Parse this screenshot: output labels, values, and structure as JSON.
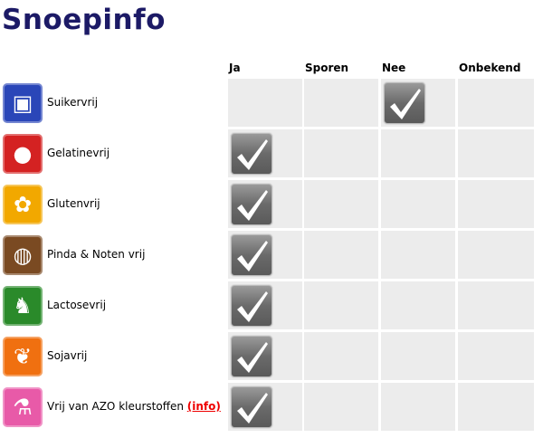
{
  "title": "Snoepinfo",
  "columns": [
    "Ja",
    "Sporen",
    "Nee",
    "Onbekend"
  ],
  "rows": [
    {
      "label": "Suikervrij",
      "icon": "sugar-cubes-icon",
      "color": "#2a46b8",
      "glyph": "▣",
      "checked": 2
    },
    {
      "label": "Gelatinevrij",
      "icon": "jelly-icon",
      "color": "#d42222",
      "glyph": "●",
      "checked": 0
    },
    {
      "label": "Glutenvrij",
      "icon": "wheat-icon",
      "color": "#f2a800",
      "glyph": "✿",
      "checked": 0
    },
    {
      "label": "Pinda & Noten vrij",
      "icon": "peanut-icon",
      "color": "#7a4a22",
      "glyph": "◍",
      "checked": 0
    },
    {
      "label": "Lactosevrij",
      "icon": "cow-icon",
      "color": "#2a8a2a",
      "glyph": "♞",
      "checked": 0
    },
    {
      "label": "Sojavrij",
      "icon": "soy-icon",
      "color": "#f07010",
      "glyph": "❦",
      "checked": 0
    },
    {
      "label": "Vrij van AZO kleurstoffen",
      "link": "(info)",
      "icon": "flask-icon",
      "color": "#e85aa8",
      "glyph": "⚗",
      "checked": 0
    }
  ]
}
